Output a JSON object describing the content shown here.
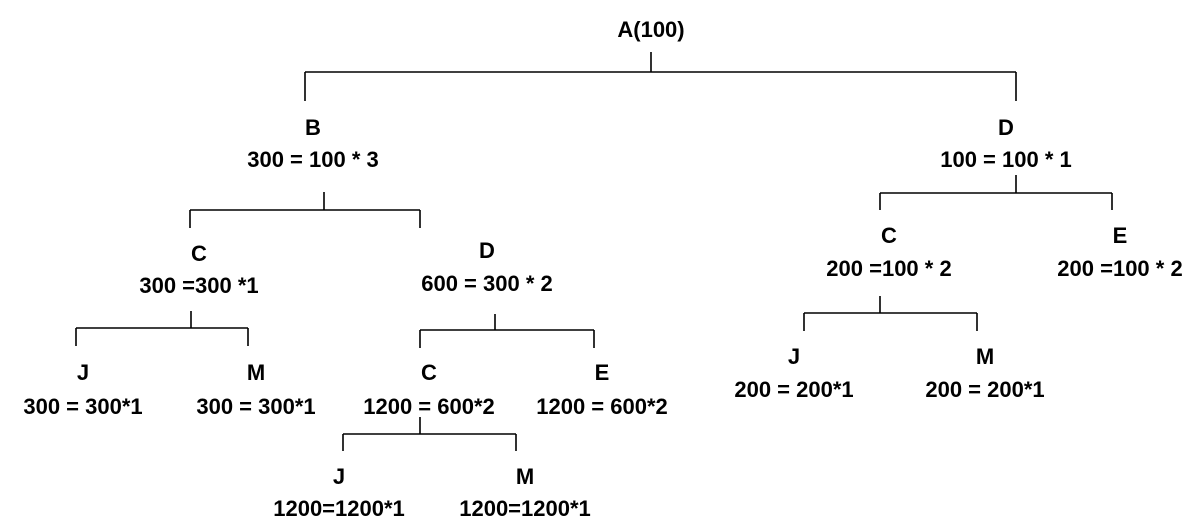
{
  "tree": {
    "root": {
      "title": "A(100)"
    },
    "nodes": {
      "B": {
        "name": "B",
        "calc": "300 = 100 * 3"
      },
      "D1": {
        "name": "D",
        "calc": "100 = 100 * 1"
      },
      "BC": {
        "name": "C",
        "calc": "300 =300 *1"
      },
      "BD": {
        "name": "D",
        "calc": "600 = 300 * 2"
      },
      "BCJ": {
        "name": "J",
        "calc": "300 = 300*1"
      },
      "BCM": {
        "name": "M",
        "calc": "300 = 300*1"
      },
      "BDC": {
        "name": "C",
        "calc": "1200 = 600*2"
      },
      "BDE": {
        "name": "E",
        "calc": "1200 = 600*2"
      },
      "BDCJ": {
        "name": "J",
        "calc": "1200=1200*1"
      },
      "BDCM": {
        "name": "M",
        "calc": "1200=1200*1"
      },
      "DC": {
        "name": "C",
        "calc": "200 =100 * 2"
      },
      "DE": {
        "name": "E",
        "calc": "200 =100 * 2"
      },
      "DCJ": {
        "name": "J",
        "calc": "200 = 200*1"
      },
      "DCM": {
        "name": "M",
        "calc": "200 = 200*1"
      }
    }
  }
}
